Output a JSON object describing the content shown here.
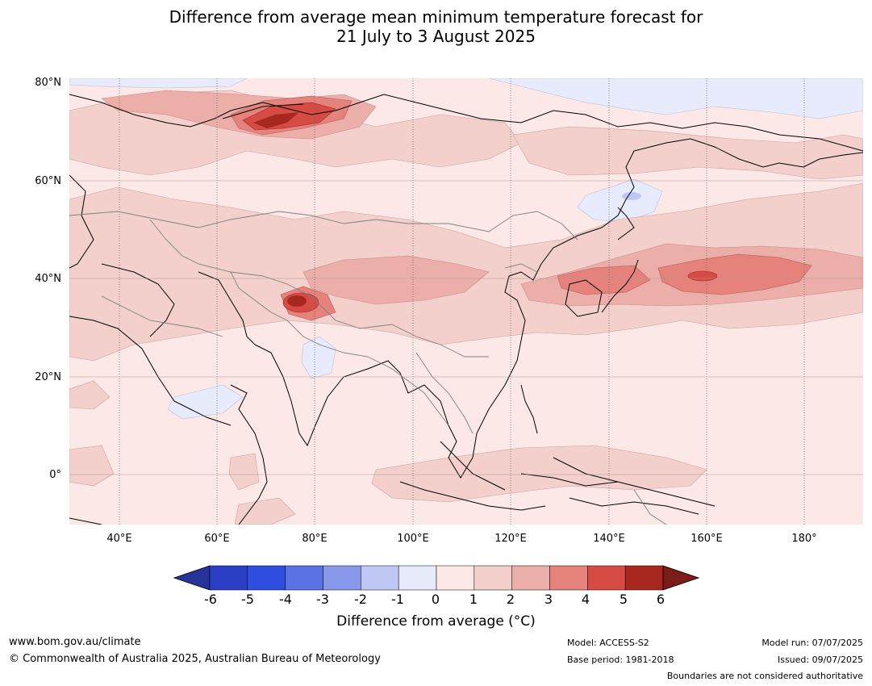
{
  "title": {
    "line1": "Difference from average mean minimum temperature forecast for",
    "line2": "21 July to 3 August 2025"
  },
  "map": {
    "lat_labels": [
      "80°N",
      "60°N",
      "40°N",
      "20°N",
      "0°"
    ],
    "lon_labels": [
      "40°E",
      "60°E",
      "80°E",
      "100°E",
      "120°E",
      "140°E",
      "160°E",
      "180°"
    ]
  },
  "colorbar": {
    "ticks": [
      "-6",
      "-5",
      "-4",
      "-3",
      "-2",
      "-1",
      "0",
      "1",
      "2",
      "3",
      "4",
      "5",
      "6"
    ],
    "colors": [
      "#25339a",
      "#2c3fc4",
      "#2f4fe0",
      "#5a72e4",
      "#8898ea",
      "#bfc8f4",
      "#e7ebfb",
      "#fce9e7",
      "#f3d0cc",
      "#ebaea8",
      "#e5827c",
      "#d64b44",
      "#a8281f",
      "#7a1d17"
    ],
    "title": "Difference from average (°C)"
  },
  "footer": {
    "website": "www.bom.gov.au/climate",
    "copyright": "© Commonwealth of Australia 2025, Australian Bureau of Meteorology",
    "model": "Model: ACCESS-S2",
    "base_period": "Base period: 1981-2018",
    "model_run": "Model run: 07/07/2025",
    "issued": "Issued: 09/07/2025",
    "disclaimer": "Boundaries are not considered authoritative"
  }
}
